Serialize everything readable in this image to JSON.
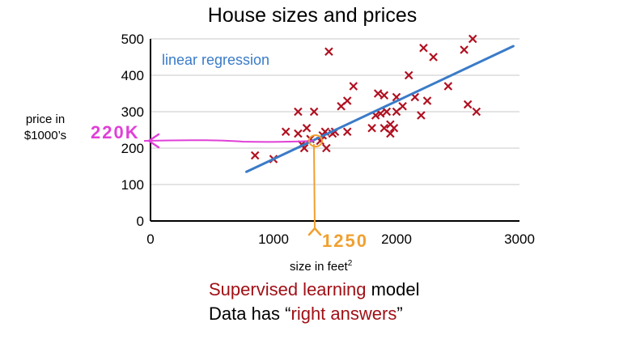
{
  "chart_data": {
    "type": "scatter",
    "title": "House sizes and prices",
    "xlabel": "size in feet",
    "xlabel_sup": "2",
    "ylabel_line1": "price in",
    "ylabel_line2": "$1000’s",
    "xlim": [
      0,
      3000
    ],
    "ylim": [
      0,
      500
    ],
    "xticks": [
      0,
      1000,
      2000,
      3000
    ],
    "yticks": [
      0,
      100,
      200,
      300,
      400,
      500
    ],
    "grid": "horizontal",
    "marker_color": "#b01020",
    "points": [
      [
        850,
        180
      ],
      [
        1000,
        170
      ],
      [
        1100,
        245
      ],
      [
        1200,
        240
      ],
      [
        1200,
        300
      ],
      [
        1230,
        210
      ],
      [
        1250,
        200
      ],
      [
        1270,
        255
      ],
      [
        1300,
        225
      ],
      [
        1330,
        300
      ],
      [
        1380,
        220
      ],
      [
        1400,
        235
      ],
      [
        1420,
        245
      ],
      [
        1430,
        200
      ],
      [
        1450,
        465
      ],
      [
        1480,
        240
      ],
      [
        1500,
        245
      ],
      [
        1550,
        315
      ],
      [
        1600,
        330
      ],
      [
        1600,
        245
      ],
      [
        1650,
        370
      ],
      [
        1800,
        255
      ],
      [
        1830,
        290
      ],
      [
        1850,
        350
      ],
      [
        1870,
        295
      ],
      [
        1900,
        345
      ],
      [
        1900,
        255
      ],
      [
        1920,
        300
      ],
      [
        1950,
        240
      ],
      [
        1950,
        265
      ],
      [
        1980,
        255
      ],
      [
        2000,
        340
      ],
      [
        2000,
        300
      ],
      [
        2050,
        315
      ],
      [
        2100,
        400
      ],
      [
        2150,
        340
      ],
      [
        2200,
        290
      ],
      [
        2220,
        475
      ],
      [
        2250,
        330
      ],
      [
        2300,
        450
      ],
      [
        2420,
        370
      ],
      [
        2550,
        470
      ],
      [
        2580,
        320
      ],
      [
        2620,
        500
      ],
      [
        2650,
        300
      ]
    ],
    "regression": {
      "label": "linear regression",
      "color": "#3a7bc8",
      "x": [
        780,
        2950
      ],
      "y": [
        135,
        480
      ]
    },
    "annotations": [
      {
        "text": "220K",
        "x": 0,
        "y": 220,
        "color": "#e040d8"
      },
      {
        "text": "1250",
        "x": 1250,
        "y": 0,
        "color": "#f0a030"
      }
    ]
  },
  "caption": {
    "line1_red": "Supervised learning",
    "line1_rest": " model",
    "line2_start": "Data has “",
    "line2_red": "right answers",
    "line2_end": "”"
  }
}
